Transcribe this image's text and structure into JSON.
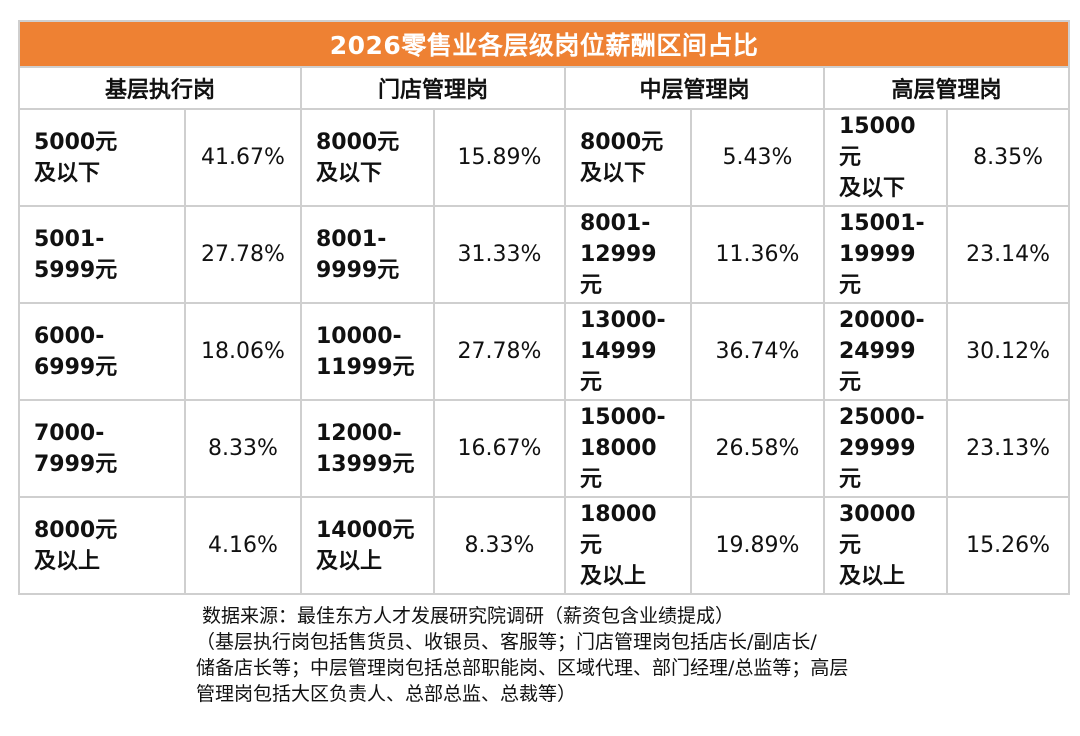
{
  "chart_data": {
    "type": "table",
    "title": "2026零售业各层级岗位薪酬区间占比",
    "columns": [
      "基层执行岗",
      "门店管理岗",
      "中层管理岗",
      "高层管理岗"
    ],
    "rows": [
      [
        {
          "range": "5000元\n及以下",
          "value": "41.67%"
        },
        {
          "range": "8000元\n及以下",
          "value": "15.89%"
        },
        {
          "range": "8000元\n及以下",
          "value": "5.43%"
        },
        {
          "range": "15000\n元\n及以下",
          "value": "8.35%"
        }
      ],
      [
        {
          "range": "5001-\n5999元",
          "value": "27.78%"
        },
        {
          "range": "8001-\n9999元",
          "value": "31.33%"
        },
        {
          "range": "8001-\n12999\n元",
          "value": "11.36%"
        },
        {
          "range": "15001-\n19999\n元",
          "value": "23.14%"
        }
      ],
      [
        {
          "range": "6000-\n6999元",
          "value": "18.06%"
        },
        {
          "range": "10000-\n11999元",
          "value": "27.78%"
        },
        {
          "range": "13000-\n14999\n元",
          "value": "36.74%"
        },
        {
          "range": "20000-\n24999\n元",
          "value": "30.12%"
        }
      ],
      [
        {
          "range": "7000-\n7999元",
          "value": "8.33%"
        },
        {
          "range": "12000-\n13999元",
          "value": "16.67%"
        },
        {
          "range": "15000-\n18000\n元",
          "value": "26.58%"
        },
        {
          "range": "25000-\n29999\n元",
          "value": "23.13%"
        }
      ],
      [
        {
          "range": "8000元\n及以上",
          "value": "4.16%"
        },
        {
          "range": "14000元\n及以上",
          "value": "8.33%"
        },
        {
          "range": "18000\n元\n及以上",
          "value": "19.89%"
        },
        {
          "range": "30000\n元\n及以上",
          "value": "15.26%"
        }
      ]
    ]
  },
  "notes": {
    "line1": "数据来源：最佳东方人才发展研究院调研（薪资包含业绩提成）",
    "line2": "（基层执行岗包括售货员、收银员、客服等；门店管理岗包括店长/副店长/",
    "line3": "储备店长等；中层管理岗包括总部职能岗、区域代理、部门经理/总监等；高层",
    "line4": "管理岗包括大区负责人、总部总监、总裁等）"
  },
  "colors": {
    "header_bg": "#ee8133",
    "header_text": "#ffffff",
    "grid": "#cfcfcf"
  }
}
